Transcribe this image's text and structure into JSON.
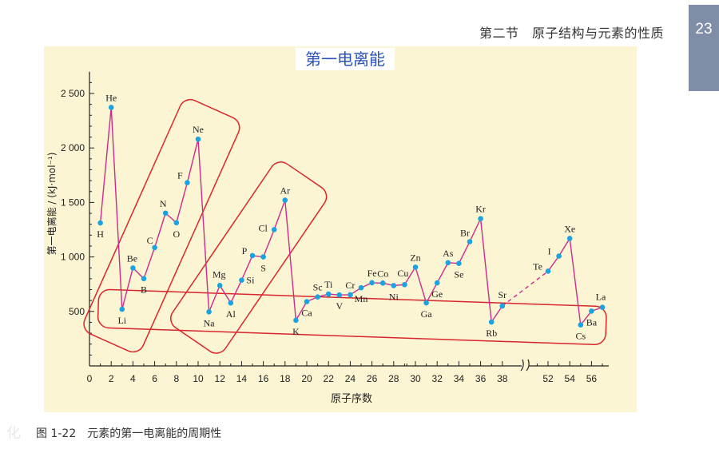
{
  "header": {
    "section_title": "第二节　原子结构与元素的性质",
    "page_number": "23"
  },
  "watermark": "化",
  "caption": "图 1-22　元素的第一电离能的周期性",
  "colors": {
    "panel": "#fbf5d3",
    "line": "#cc2b8c",
    "point": "#1aa3e0",
    "box": "#d8262c",
    "title": "#2b53b5",
    "page_tab": "#7f8da6"
  },
  "chart_data": {
    "type": "line",
    "title": "第一电离能",
    "xlabel": "原子序数",
    "ylabel": "第一电离能 / (kJ·mol⁻¹)",
    "ylim": [
      0,
      2700
    ],
    "x_ticks": [
      0,
      2,
      4,
      6,
      8,
      10,
      12,
      14,
      16,
      18,
      20,
      22,
      24,
      26,
      28,
      30,
      32,
      34,
      36,
      38,
      52,
      54,
      56
    ],
    "y_ticks": [
      500,
      1000,
      1500,
      2000,
      2500
    ],
    "y_tick_labels": [
      "500",
      "1 000",
      "1 500",
      "2 000",
      "2 500"
    ],
    "axis_break": {
      "between": [
        38,
        52
      ]
    },
    "grid": false,
    "points": [
      {
        "z": 1,
        "symbol": "H",
        "ie": 1312
      },
      {
        "z": 2,
        "symbol": "He",
        "ie": 2372
      },
      {
        "z": 3,
        "symbol": "Li",
        "ie": 520
      },
      {
        "z": 4,
        "symbol": "Be",
        "ie": 899
      },
      {
        "z": 5,
        "symbol": "B",
        "ie": 801
      },
      {
        "z": 6,
        "symbol": "C",
        "ie": 1086
      },
      {
        "z": 7,
        "symbol": "N",
        "ie": 1402
      },
      {
        "z": 8,
        "symbol": "O",
        "ie": 1314
      },
      {
        "z": 9,
        "symbol": "F",
        "ie": 1681
      },
      {
        "z": 10,
        "symbol": "Ne",
        "ie": 2081
      },
      {
        "z": 11,
        "symbol": "Na",
        "ie": 496
      },
      {
        "z": 12,
        "symbol": "Mg",
        "ie": 738
      },
      {
        "z": 13,
        "symbol": "Al",
        "ie": 578
      },
      {
        "z": 14,
        "symbol": "Si",
        "ie": 787
      },
      {
        "z": 15,
        "symbol": "P",
        "ie": 1012
      },
      {
        "z": 16,
        "symbol": "S",
        "ie": 1000
      },
      {
        "z": 17,
        "symbol": "Cl",
        "ie": 1251
      },
      {
        "z": 18,
        "symbol": "Ar",
        "ie": 1521
      },
      {
        "z": 19,
        "symbol": "K",
        "ie": 419
      },
      {
        "z": 20,
        "symbol": "Ca",
        "ie": 590
      },
      {
        "z": 21,
        "symbol": "Sc",
        "ie": 633
      },
      {
        "z": 22,
        "symbol": "Ti",
        "ie": 659
      },
      {
        "z": 23,
        "symbol": "V",
        "ie": 651
      },
      {
        "z": 24,
        "symbol": "Cr",
        "ie": 653
      },
      {
        "z": 25,
        "symbol": "Mn",
        "ie": 717
      },
      {
        "z": 26,
        "symbol": "Fe",
        "ie": 763
      },
      {
        "z": 27,
        "symbol": "Co",
        "ie": 760
      },
      {
        "z": 28,
        "symbol": "Ni",
        "ie": 737
      },
      {
        "z": 29,
        "symbol": "Cu",
        "ie": 746
      },
      {
        "z": 30,
        "symbol": "Zn",
        "ie": 906
      },
      {
        "z": 31,
        "symbol": "Ga",
        "ie": 579
      },
      {
        "z": 32,
        "symbol": "Ge",
        "ie": 762
      },
      {
        "z": 33,
        "symbol": "As",
        "ie": 947
      },
      {
        "z": 34,
        "symbol": "Se",
        "ie": 941
      },
      {
        "z": 35,
        "symbol": "Br",
        "ie": 1140
      },
      {
        "z": 36,
        "symbol": "Kr",
        "ie": 1351
      },
      {
        "z": 37,
        "symbol": "Rb",
        "ie": 403
      },
      {
        "z": 38,
        "symbol": "Sr",
        "ie": 550
      },
      {
        "z": 52,
        "symbol": "Te",
        "ie": 869
      },
      {
        "z": 53,
        "symbol": "I",
        "ie": 1008
      },
      {
        "z": 54,
        "symbol": "Xe",
        "ie": 1170
      },
      {
        "z": 55,
        "symbol": "Cs",
        "ie": 376
      },
      {
        "z": 56,
        "symbol": "Ba",
        "ie": 503
      },
      {
        "z": 57,
        "symbol": "La",
        "ie": 538
      }
    ],
    "dashed_segment": {
      "from": 38,
      "to": 52
    },
    "highlight_boxes": [
      {
        "name": "period-2-group",
        "label": "Li–Ne"
      },
      {
        "name": "period-3-group",
        "label": "Na–Ar"
      },
      {
        "name": "alkali-metals-group",
        "label": "Li, Na, K, Rb, Cs"
      }
    ]
  }
}
